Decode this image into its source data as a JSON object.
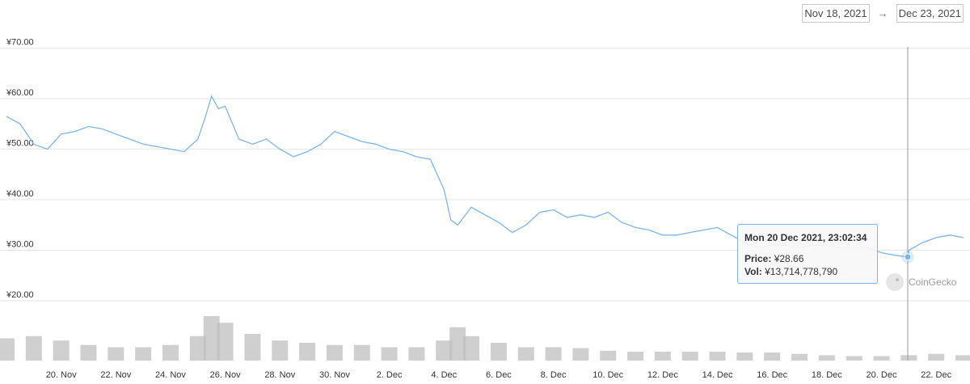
{
  "date_range": {
    "from": "Nov 18, 2021",
    "to": "Dec 23, 2021",
    "arrow": "→"
  },
  "tooltip": {
    "title": "Mon 20 Dec 2021, 23:02:34",
    "price_label": "Price:",
    "price_value": "¥28.66",
    "vol_label": "Vol:",
    "vol_value": "¥13,714,778,790"
  },
  "credit": "CoinGecko",
  "colors": {
    "line": "#7cb5ec",
    "volume": "#bfbfbf",
    "grid": "#e6e6e6",
    "crosshair": "#999999"
  },
  "chart_data": {
    "type": "line",
    "title": "",
    "xlabel": "",
    "ylabel": "",
    "ylim": [
      15,
      70
    ],
    "yticks": [
      "¥20.00",
      "¥30.00",
      "¥40.00",
      "¥50.00",
      "¥60.00",
      "¥70.00"
    ],
    "ytick_values": [
      20,
      30,
      40,
      50,
      60,
      70
    ],
    "xlim": [
      "2021-11-18",
      "2021-12-23"
    ],
    "xticks": [
      "20. Nov",
      "22. Nov",
      "24. Nov",
      "26. Nov",
      "28. Nov",
      "30. Nov",
      "2. Dec",
      "4. Dec",
      "6. Dec",
      "8. Dec",
      "10. Dec",
      "12. Dec",
      "14. Dec",
      "16. Dec",
      "18. Dec",
      "20. Dec",
      "22. Dec"
    ],
    "xtick_dates": [
      "2021-11-20",
      "2021-11-22",
      "2021-11-24",
      "2021-11-26",
      "2021-11-28",
      "2021-11-30",
      "2021-12-02",
      "2021-12-04",
      "2021-12-06",
      "2021-12-08",
      "2021-12-10",
      "2021-12-12",
      "2021-12-14",
      "2021-12-16",
      "2021-12-18",
      "2021-12-20",
      "2021-12-22"
    ],
    "grid": true,
    "series": [
      {
        "kind": "price",
        "x": [
          "2021-11-18",
          "2021-11-18T12:00",
          "2021-11-19",
          "2021-11-19T12:00",
          "2021-11-20",
          "2021-11-20T12:00",
          "2021-11-21",
          "2021-11-21T12:00",
          "2021-11-22",
          "2021-11-22T12:00",
          "2021-11-23",
          "2021-11-23T12:00",
          "2021-11-24",
          "2021-11-24T12:00",
          "2021-11-25",
          "2021-11-25T06:00",
          "2021-11-25T12:00",
          "2021-11-25T18:00",
          "2021-11-26",
          "2021-11-26T12:00",
          "2021-11-27",
          "2021-11-27T12:00",
          "2021-11-28",
          "2021-11-28T12:00",
          "2021-11-29",
          "2021-11-29T12:00",
          "2021-11-30",
          "2021-11-30T12:00",
          "2021-12-01",
          "2021-12-01T12:00",
          "2021-12-02",
          "2021-12-02T12:00",
          "2021-12-03",
          "2021-12-03T12:00",
          "2021-12-04",
          "2021-12-04T06:00",
          "2021-12-04T12:00",
          "2021-12-05",
          "2021-12-05T12:00",
          "2021-12-06",
          "2021-12-06T12:00",
          "2021-12-07",
          "2021-12-07T12:00",
          "2021-12-08",
          "2021-12-08T12:00",
          "2021-12-09",
          "2021-12-09T12:00",
          "2021-12-10",
          "2021-12-10T12:00",
          "2021-12-11",
          "2021-12-11T12:00",
          "2021-12-12",
          "2021-12-12T12:00",
          "2021-12-13",
          "2021-12-13T12:00",
          "2021-12-14",
          "2021-12-14T12:00",
          "2021-12-15",
          "2021-12-15T12:00",
          "2021-12-16",
          "2021-12-16T12:00",
          "2021-12-17",
          "2021-12-17T12:00",
          "2021-12-18",
          "2021-12-18T12:00",
          "2021-12-19",
          "2021-12-19T12:00",
          "2021-12-20",
          "2021-12-20T12:00",
          "2021-12-20T23:02",
          "2021-12-21",
          "2021-12-21T12:00",
          "2021-12-22",
          "2021-12-22T12:00",
          "2021-12-23"
        ],
        "y": [
          56.5,
          55.0,
          51.0,
          50.0,
          53.0,
          53.5,
          54.5,
          54.0,
          53.0,
          52.0,
          51.0,
          50.5,
          50.0,
          49.5,
          52.0,
          56.0,
          60.5,
          58.0,
          58.5,
          52.0,
          51.0,
          52.0,
          50.0,
          48.5,
          49.5,
          51.0,
          53.5,
          52.5,
          51.5,
          51.0,
          50.0,
          49.5,
          48.5,
          48.0,
          42.0,
          36.0,
          35.0,
          38.5,
          37.0,
          35.5,
          33.5,
          35.0,
          37.5,
          38.0,
          36.5,
          37.0,
          36.5,
          37.5,
          35.5,
          34.5,
          34.0,
          33.0,
          33.0,
          33.5,
          34.0,
          34.5,
          33.0,
          31.5,
          30.5,
          31.0,
          31.0,
          30.5,
          31.0,
          31.0,
          30.5,
          30.5,
          30.5,
          29.5,
          29.0,
          28.66,
          30.0,
          31.5,
          32.5,
          33.0,
          32.5
        ]
      },
      {
        "kind": "volume",
        "x": [
          "2021-11-18",
          "2021-11-19",
          "2021-11-20",
          "2021-11-21",
          "2021-11-22",
          "2021-11-23",
          "2021-11-24",
          "2021-11-25",
          "2021-11-25T12:00",
          "2021-11-26",
          "2021-11-27",
          "2021-11-28",
          "2021-11-29",
          "2021-11-30",
          "2021-12-01",
          "2021-12-02",
          "2021-12-03",
          "2021-12-04",
          "2021-12-04T12:00",
          "2021-12-05",
          "2021-12-06",
          "2021-12-07",
          "2021-12-08",
          "2021-12-09",
          "2021-12-10",
          "2021-12-11",
          "2021-12-12",
          "2021-12-13",
          "2021-12-14",
          "2021-12-15",
          "2021-12-16",
          "2021-12-17",
          "2021-12-18",
          "2021-12-19",
          "2021-12-20",
          "2021-12-21",
          "2021-12-22",
          "2021-12-23"
        ],
        "y": [
          0.5,
          0.55,
          0.45,
          0.35,
          0.3,
          0.3,
          0.35,
          0.55,
          1.0,
          0.85,
          0.6,
          0.45,
          0.4,
          0.35,
          0.35,
          0.3,
          0.3,
          0.45,
          0.75,
          0.55,
          0.4,
          0.3,
          0.3,
          0.28,
          0.22,
          0.2,
          0.2,
          0.2,
          0.2,
          0.18,
          0.18,
          0.15,
          0.12,
          0.1,
          0.1,
          0.12,
          0.15,
          0.12
        ]
      }
    ]
  }
}
